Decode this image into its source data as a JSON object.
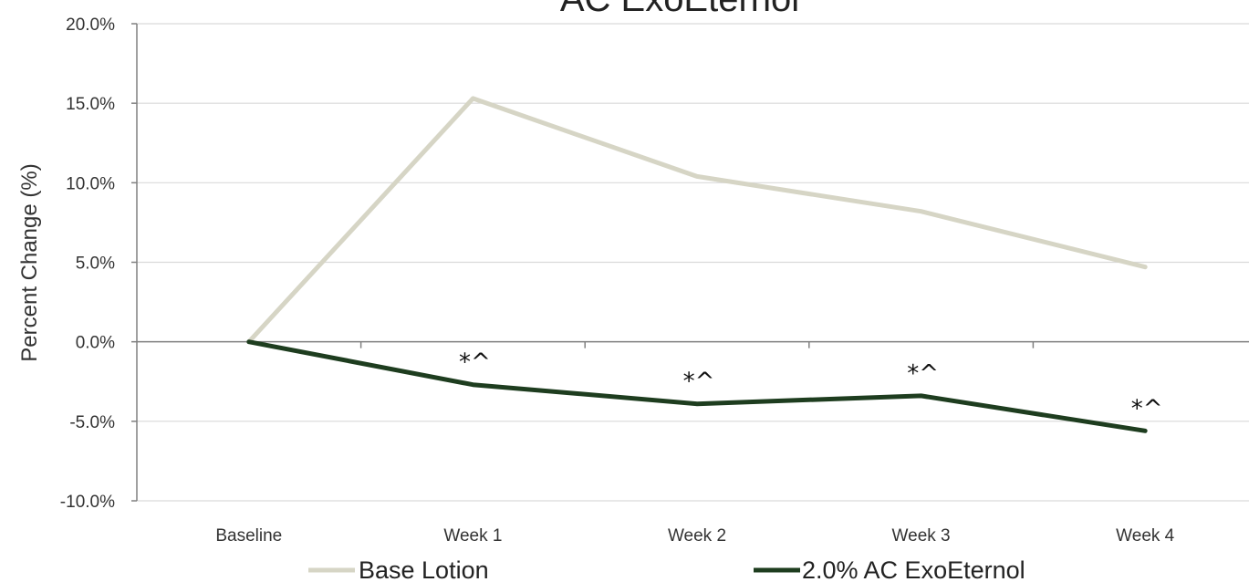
{
  "chart_data": {
    "type": "line",
    "title": "AC ExoEternol",
    "ylabel": "Percent Change (%)",
    "xlabel": "",
    "categories": [
      "Baseline",
      "Week 1",
      "Week 2",
      "Week 3",
      "Week 4"
    ],
    "ylim": [
      -10,
      20
    ],
    "y_ticks": [
      20,
      15,
      10,
      5,
      0,
      -5,
      -10
    ],
    "y_tick_labels": [
      "20.0%",
      "15.0%",
      "10.0%",
      "5.0%",
      "0.0%",
      "-5.0%",
      "-10.0%"
    ],
    "grid": true,
    "legend_position": "bottom",
    "series": [
      {
        "name": "Base Lotion",
        "color": "#d6d5c5",
        "values": [
          0,
          15.3,
          10.4,
          8.2,
          4.7
        ]
      },
      {
        "name": "2.0% AC ExoEternol",
        "color": "#1e3d1f",
        "values": [
          0,
          -2.7,
          -3.9,
          -3.4,
          -5.6
        ]
      }
    ],
    "annotations": [
      {
        "category": "Week 1",
        "text": "*^"
      },
      {
        "category": "Week 2",
        "text": "*^"
      },
      {
        "category": "Week 3",
        "text": "*^"
      },
      {
        "category": "Week 4",
        "text": "*^"
      }
    ]
  }
}
